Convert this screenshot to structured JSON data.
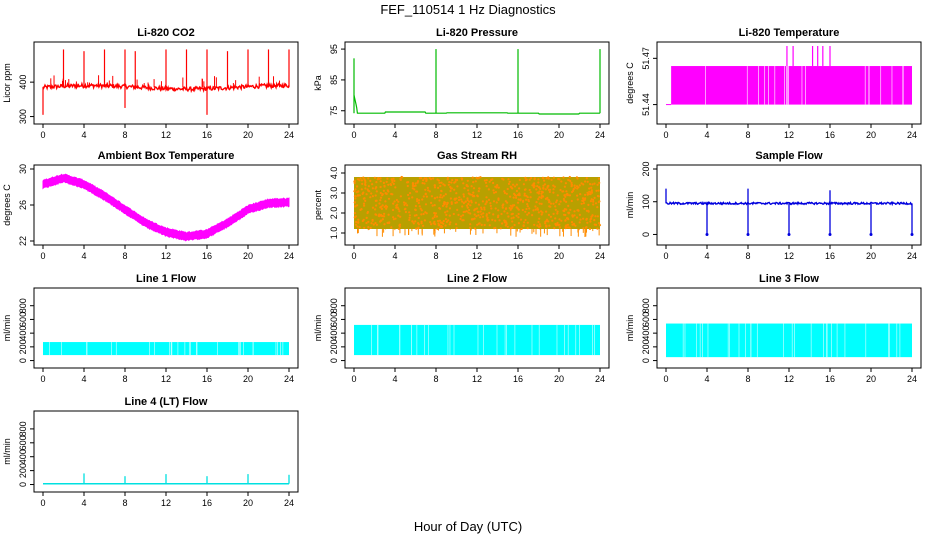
{
  "figure": {
    "title": "FEF_110514  1 Hz Diagnostics",
    "xlabel": "Hour of Day (UTC)"
  },
  "chart_data": [
    {
      "type": "line",
      "title": "Li-820 CO2",
      "ylabel": "Licor ppm",
      "color": "#ff0000",
      "xlim": [
        0,
        24
      ],
      "ylim": [
        290,
        505
      ],
      "xticks": [
        "0",
        "4",
        "8",
        "12",
        "16",
        "20",
        "24"
      ],
      "yticks": [
        "300",
        "400"
      ],
      "pattern": "co2",
      "base": 385,
      "noise": 6,
      "spikes": [
        {
          "x": 2,
          "y": 495
        },
        {
          "x": 4,
          "y": 490
        },
        {
          "x": 6,
          "y": 495
        },
        {
          "x": 8,
          "y": 495
        },
        {
          "x": 9,
          "y": 490
        },
        {
          "x": 12,
          "y": 495
        },
        {
          "x": 14,
          "y": 495
        },
        {
          "x": 16,
          "y": 495
        },
        {
          "x": 18,
          "y": 490
        },
        {
          "x": 20,
          "y": 495
        },
        {
          "x": 22,
          "y": 495
        },
        {
          "x": 24,
          "y": 495
        }
      ],
      "dips": [
        {
          "x": 0,
          "y": 305
        },
        {
          "x": 8,
          "y": 325
        },
        {
          "x": 16,
          "y": 305
        }
      ]
    },
    {
      "type": "line",
      "title": "Li-820 Pressure",
      "ylabel": "kPa",
      "color": "#00bb00",
      "xlim": [
        0,
        24
      ],
      "ylim": [
        72,
        96
      ],
      "xticks": [
        "0",
        "4",
        "8",
        "12",
        "16",
        "20",
        "24"
      ],
      "yticks": [
        "75",
        "85",
        "95"
      ],
      "pattern": "pressure",
      "base": 74.2,
      "spikes": [
        {
          "x": 0,
          "y": 92
        },
        {
          "x": 8,
          "y": 95
        },
        {
          "x": 16,
          "y": 95
        },
        {
          "x": 24,
          "y": 95
        }
      ]
    },
    {
      "type": "line",
      "title": "Li-820 Temperature",
      "ylabel": "degrees C",
      "color": "#ff00ff",
      "xlim": [
        0,
        24
      ],
      "ylim": [
        51.43,
        51.478
      ],
      "xticks": [
        "0",
        "4",
        "8",
        "12",
        "16",
        "20",
        "24"
      ],
      "yticks": [
        "51.44",
        "51.47"
      ],
      "pattern": "temp_digital",
      "low": 51.44,
      "high": 51.465,
      "spikes": [
        {
          "x": 11.8,
          "y": 51.478
        },
        {
          "x": 12.4,
          "y": 51.478
        },
        {
          "x": 14.3,
          "y": 51.478
        },
        {
          "x": 14.8,
          "y": 51.478
        },
        {
          "x": 15.3,
          "y": 51.478
        },
        {
          "x": 16.0,
          "y": 51.478
        }
      ]
    },
    {
      "type": "line",
      "title": "Ambient Box Temperature",
      "ylabel": "degrees C",
      "color": "#ff00ff",
      "xlim": [
        0,
        24
      ],
      "ylim": [
        22,
        30
      ],
      "xticks": [
        "0",
        "4",
        "8",
        "12",
        "16",
        "20",
        "24"
      ],
      "yticks": [
        "22",
        "26",
        "30"
      ],
      "pattern": "ambient",
      "curve": [
        [
          0,
          28.3
        ],
        [
          2,
          29
        ],
        [
          4,
          28.3
        ],
        [
          6,
          27
        ],
        [
          8,
          25.5
        ],
        [
          10,
          24
        ],
        [
          12,
          23
        ],
        [
          14,
          22.5
        ],
        [
          16,
          22.8
        ],
        [
          18,
          24
        ],
        [
          20,
          25.5
        ],
        [
          22,
          26.2
        ],
        [
          24,
          26.3
        ]
      ]
    },
    {
      "type": "scatter",
      "title": "Gas Stream RH",
      "ylabel": "percent",
      "color": "#ff8c00",
      "color2": "#b8a000",
      "xlim": [
        0,
        24
      ],
      "ylim": [
        0.6,
        4.2
      ],
      "xticks": [
        "0",
        "4",
        "8",
        "12",
        "16",
        "20",
        "24"
      ],
      "yticks": [
        "1.0",
        "2.0",
        "3.0",
        "4.0"
      ],
      "pattern": "rh",
      "low": 1.2,
      "high": 3.8
    },
    {
      "type": "line",
      "title": "Sample Flow",
      "ylabel": "ml/min",
      "color": "#0000dd",
      "xlim": [
        0,
        24
      ],
      "ylim": [
        -20,
        200
      ],
      "xticks": [
        "0",
        "4",
        "8",
        "12",
        "16",
        "20",
        "24"
      ],
      "yticks": [
        "0",
        "100",
        "200"
      ],
      "pattern": "sample",
      "base": 95,
      "spikes": [
        {
          "x": 0,
          "y": 140
        },
        {
          "x": 8,
          "y": 140
        },
        {
          "x": 16,
          "y": 135
        }
      ],
      "dips": [
        {
          "x": 4,
          "y": 0
        },
        {
          "x": 8,
          "y": 0
        },
        {
          "x": 12,
          "y": 0
        },
        {
          "x": 16,
          "y": 0
        },
        {
          "x": 20,
          "y": 0
        },
        {
          "x": 24,
          "y": 0
        }
      ]
    },
    {
      "type": "area",
      "title": "Line 1 Flow",
      "ylabel": "ml/min",
      "color": "#00ffff",
      "xlim": [
        0,
        24
      ],
      "ylim": [
        -50,
        1000
      ],
      "xticks": [
        "0",
        "4",
        "8",
        "12",
        "16",
        "20",
        "24"
      ],
      "yticks": [
        "0",
        "200",
        "400",
        "600",
        "800"
      ],
      "pattern": "band",
      "low": 80,
      "high": 270
    },
    {
      "type": "area",
      "title": "Line 2 Flow",
      "ylabel": "ml/min",
      "color": "#00ffff",
      "xlim": [
        0,
        24
      ],
      "ylim": [
        -50,
        1000
      ],
      "xticks": [
        "0",
        "4",
        "8",
        "12",
        "16",
        "20",
        "24"
      ],
      "yticks": [
        "0",
        "200",
        "400",
        "600",
        "800"
      ],
      "pattern": "band",
      "low": 80,
      "high": 520
    },
    {
      "type": "area",
      "title": "Line 3 Flow",
      "ylabel": "ml/min",
      "color": "#00ffff",
      "xlim": [
        0,
        24
      ],
      "ylim": [
        -50,
        1000
      ],
      "xticks": [
        "0",
        "4",
        "8",
        "12",
        "16",
        "20",
        "24"
      ],
      "yticks": [
        "0",
        "200",
        "400",
        "600",
        "800"
      ],
      "pattern": "band",
      "low": 50,
      "high": 540
    },
    {
      "type": "line",
      "title": "Line 4 (LT) Flow",
      "ylabel": "ml/min",
      "color": "#00e0e0",
      "xlim": [
        0,
        24
      ],
      "ylim": [
        -50,
        1000
      ],
      "xticks": [
        "0",
        "4",
        "8",
        "12",
        "16",
        "20",
        "24"
      ],
      "yticks": [
        "0",
        "200",
        "400",
        "600",
        "800"
      ],
      "pattern": "line4",
      "base": 12,
      "spikes": [
        {
          "x": 4,
          "y": 160
        },
        {
          "x": 8,
          "y": 120
        },
        {
          "x": 12,
          "y": 150
        },
        {
          "x": 16,
          "y": 120
        },
        {
          "x": 20,
          "y": 150
        },
        {
          "x": 24,
          "y": 140
        }
      ]
    }
  ]
}
